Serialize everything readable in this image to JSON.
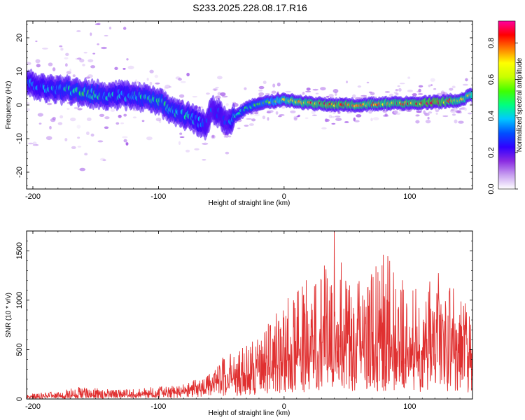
{
  "figure": {
    "title": "S233.2025.228.08.17.R16"
  },
  "chart_data": [
    {
      "type": "heatmap",
      "xlabel": "Height of straight line (km)",
      "ylabel": "Frequency (Hz)",
      "xlim": [
        -205,
        150
      ],
      "ylim": [
        -25,
        25
      ],
      "x_ticks": [
        -200,
        -100,
        0,
        100
      ],
      "x_tick_labels": [
        "-200",
        "-100",
        "0",
        "100"
      ],
      "y_ticks": [
        -20,
        -10,
        0,
        10,
        20
      ],
      "y_tick_labels": [
        "-20",
        "-10",
        "0",
        "10",
        "20"
      ],
      "colorbar": {
        "label": "Normalized spectral amplitude",
        "range": [
          0,
          0.92
        ],
        "ticks": [
          0,
          0.2,
          0.4,
          0.6,
          0.8
        ],
        "tick_labels": [
          "0.0",
          "0.2",
          "0.4",
          "0.6",
          "0.8"
        ],
        "colormap": [
          "#ffffff",
          "#c8a0f0",
          "#8a2be2",
          "#3000ff",
          "#0050ff",
          "#00c8ff",
          "#00ff80",
          "#40ff00",
          "#c8ff00",
          "#ffff00",
          "#ff8000",
          "#ff0000",
          "#ff00a0"
        ]
      },
      "ridge": {
        "x": [
          -205,
          -190,
          -175,
          -160,
          -145,
          -130,
          -115,
          -100,
          -90,
          -80,
          -70,
          -62,
          -58,
          -55,
          -50,
          -45,
          -40,
          -30,
          -20,
          -10,
          0,
          20,
          40,
          60,
          80,
          100,
          120,
          140,
          150
        ],
        "y": [
          7,
          5,
          4.5,
          3.5,
          3,
          3,
          2.5,
          1,
          -1.5,
          -3,
          -4.5,
          -6,
          -1,
          -2,
          -3,
          -5.5,
          -3.5,
          -1,
          0.5,
          1,
          1.5,
          0.5,
          0,
          0,
          0.5,
          0.5,
          0.8,
          1.5,
          3
        ],
        "amplitude": [
          0.35,
          0.4,
          0.45,
          0.5,
          0.45,
          0.4,
          0.45,
          0.5,
          0.45,
          0.45,
          0.4,
          0.35,
          0.3,
          0.35,
          0.35,
          0.3,
          0.45,
          0.5,
          0.55,
          0.6,
          0.7,
          0.8,
          0.85,
          0.8,
          0.8,
          0.82,
          0.9,
          0.75,
          0.7
        ]
      },
      "grid": false
    },
    {
      "type": "line",
      "xlabel": "Height of straight line (km)",
      "ylabel": "SNR (10 * v/v)",
      "xlim": [
        -205,
        150
      ],
      "ylim": [
        0,
        1700
      ],
      "x_ticks": [
        -200,
        -100,
        0,
        100
      ],
      "x_tick_labels": [
        "-200",
        "-100",
        "0",
        "100"
      ],
      "y_ticks": [
        0,
        500,
        1000,
        1500
      ],
      "y_tick_labels": [
        "0",
        "500",
        "1000",
        "1500"
      ],
      "series": [
        {
          "color": "#e03030",
          "envelope": {
            "x": [
              -205,
              -180,
              -160,
              -140,
              -120,
              -100,
              -80,
              -70,
              -60,
              -50,
              -40,
              -30,
              -20,
              -10,
              0,
              10,
              20,
              30,
              40,
              50,
              60,
              70,
              80,
              90,
              100,
              110,
              120,
              130,
              140,
              150
            ],
            "base": [
              20,
              30,
              40,
              40,
              40,
              50,
              70,
              90,
              120,
              160,
              200,
              240,
              280,
              320,
              380,
              420,
              460,
              480,
              500,
              500,
              520,
              520,
              500,
              480,
              480,
              480,
              470,
              460,
              450,
              440
            ],
            "peak": [
              50,
              80,
              130,
              100,
              100,
              130,
              150,
              200,
              250,
              420,
              480,
              560,
              620,
              820,
              960,
              1150,
              1250,
              1320,
              1700,
              1350,
              1250,
              1300,
              1550,
              1300,
              1200,
              1150,
              1300,
              1250,
              1050,
              1000
            ]
          }
        }
      ],
      "grid": false
    }
  ]
}
